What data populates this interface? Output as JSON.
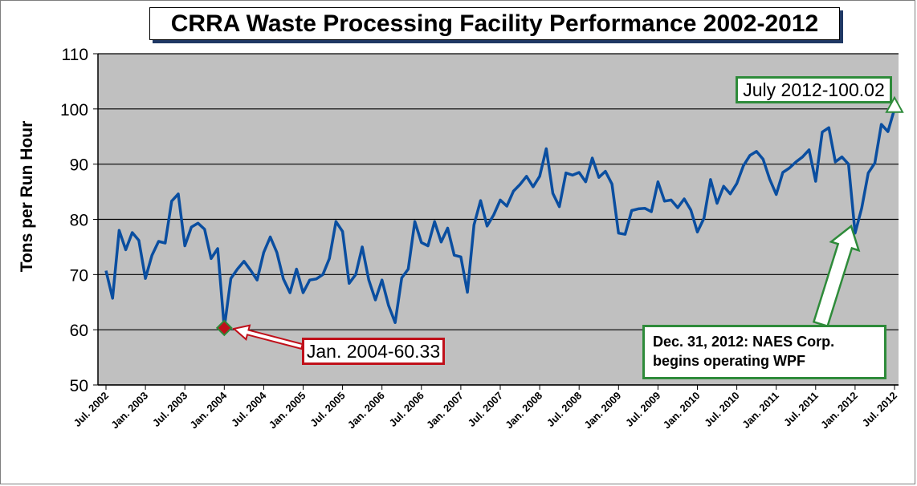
{
  "chart_data": {
    "type": "line",
    "title": "CRRA Waste Processing Facility Performance 2002-2012",
    "ylabel": "Tons per Run Hour",
    "xlabel": "",
    "ylim": [
      50,
      110
    ],
    "yticks": [
      50,
      60,
      70,
      80,
      90,
      100,
      110
    ],
    "grid": true,
    "x_tick_labels": [
      "Jul. 2002",
      "Jan. 2003",
      "Jul. 2003",
      "Jan. 2004",
      "Jul. 2004",
      "Jan. 2005",
      "Jul. 2005",
      "Jan. 2006",
      "Jul. 2006",
      "Jan. 2007",
      "Jul. 2007",
      "Jan. 2008",
      "Jul. 2008",
      "Jan. 2009",
      "Jul. 2009",
      "Jan. 2010",
      "Jul. 2010",
      "Jan. 2011",
      "Jul. 2011",
      "Jan. 2012",
      "Jul. 2012"
    ],
    "x_start": "Jul. 2002",
    "x_end": "Jul. 2012",
    "series": [
      {
        "color": "#0a4ea0",
        "values": [
          70.7,
          65.7,
          78.0,
          74.5,
          77.6,
          76.2,
          69.3,
          73.5,
          76.0,
          75.7,
          83.3,
          84.6,
          75.2,
          78.6,
          79.3,
          78.2,
          72.9,
          74.7,
          60.33,
          69.3,
          71.0,
          72.4,
          70.8,
          69.0,
          74.0,
          76.8,
          74.0,
          69.2,
          66.7,
          71.0,
          66.7,
          69.0,
          69.2,
          70.0,
          72.9,
          79.6,
          77.8,
          68.4,
          70.0,
          75.0,
          69.0,
          65.4,
          69.0,
          64.4,
          61.3,
          69.4,
          71.0,
          79.6,
          75.8,
          75.2,
          79.6,
          75.9,
          78.4,
          73.5,
          73.2,
          66.8,
          79.0,
          83.4,
          78.8,
          80.8,
          83.5,
          82.4,
          85.1,
          86.3,
          87.8,
          85.9,
          87.8,
          92.8,
          84.7,
          82.3,
          88.4,
          88.0,
          88.5,
          86.8,
          91.1,
          87.6,
          88.7,
          86.4,
          77.5,
          77.3,
          81.6,
          81.9,
          82.0,
          81.4,
          86.8,
          83.3,
          83.5,
          82.1,
          83.7,
          81.7,
          77.7,
          80.2,
          87.2,
          82.9,
          86.0,
          84.6,
          86.5,
          89.7,
          91.6,
          92.3,
          90.9,
          87.3,
          84.5,
          88.5,
          89.3,
          90.4,
          91.3,
          92.6,
          86.9,
          95.8,
          96.6,
          90.4,
          91.3,
          90.0,
          77.5,
          82.0,
          88.4,
          90.2,
          97.2,
          95.9,
          100.02
        ]
      }
    ],
    "annotations": [
      {
        "id": "max",
        "label": "July 2012-100.02",
        "date": "Jul. 2012",
        "value": 100.02,
        "color": "#2e8b3a"
      },
      {
        "id": "min",
        "label": "Jan. 2004-60.33",
        "date": "Jan. 2004",
        "value": 60.33,
        "color": "#c0101a"
      },
      {
        "id": "naes",
        "line1": "Dec. 31, 2012: NAES Corp.",
        "line2": "begins operating WPF",
        "date": "Jan. 2012",
        "value": 77.5,
        "color": "#2e8b3a"
      }
    ],
    "colors": {
      "plot_background": "#c0c0c0",
      "line": "#0a4ea0",
      "marker_min": "#c0101a",
      "marker_max_outline": "#2e8b3a"
    }
  }
}
